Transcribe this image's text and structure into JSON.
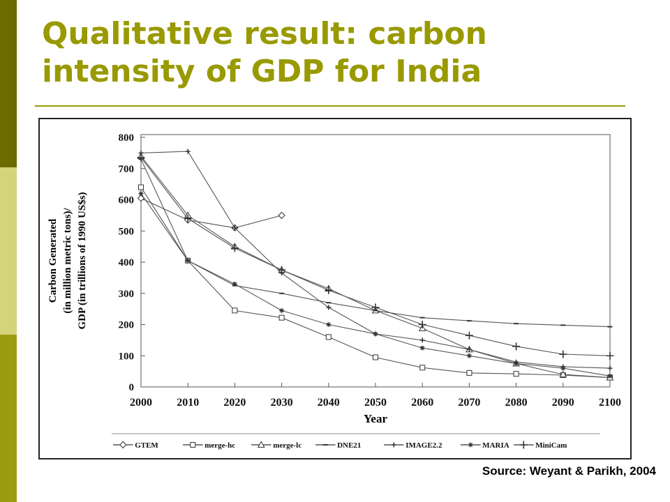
{
  "slide": {
    "title_line1": "Qualitative result: carbon",
    "title_line2": "intensity of GDP for India",
    "source": "Source: Weyant & Parikh, 2004",
    "colors": {
      "accent": "#999900",
      "bar_dark": "#6b6b00",
      "bar_light": "#d4d47a",
      "bar_mid": "#9c9c10"
    }
  },
  "chart_data": {
    "type": "line",
    "ylabel_lines": [
      "Carbon Generated",
      "(in million metric tons)/",
      "GDP (in trillions of 1990 US$s)"
    ],
    "xlabel": "Year",
    "x": [
      2000,
      2010,
      2020,
      2030,
      2040,
      2050,
      2060,
      2070,
      2080,
      2090,
      2100
    ],
    "xlim": [
      2000,
      2100
    ],
    "ylim": [
      0,
      800
    ],
    "yticks": [
      0,
      100,
      200,
      300,
      400,
      500,
      600,
      700,
      800
    ],
    "grid": false,
    "legend_position": "bottom",
    "series": [
      {
        "name": "GTEM",
        "marker": "diamond",
        "values": [
          605,
          535,
          510,
          550,
          null,
          null,
          null,
          null,
          null,
          null,
          null
        ]
      },
      {
        "name": "merge-hc",
        "marker": "square",
        "values": [
          640,
          405,
          245,
          222,
          160,
          95,
          62,
          45,
          42,
          38,
          30
        ]
      },
      {
        "name": "merge-lc",
        "marker": "triangle",
        "values": [
          740,
          550,
          450,
          375,
          315,
          245,
          188,
          120,
          75,
          40,
          30
        ]
      },
      {
        "name": "DNE21",
        "marker": "dash",
        "values": [
          730,
          405,
          325,
          300,
          270,
          245,
          222,
          212,
          203,
          198,
          193
        ]
      },
      {
        "name": "IMAGE2.2",
        "marker": "plus",
        "values": [
          750,
          755,
          510,
          365,
          255,
          170,
          150,
          120,
          80,
          65,
          60
        ]
      },
      {
        "name": "MARIA",
        "marker": "star",
        "values": [
          620,
          405,
          330,
          245,
          200,
          170,
          125,
          100,
          75,
          60,
          35
        ]
      },
      {
        "name": "MiniCam",
        "marker": "cross",
        "values": [
          735,
          540,
          445,
          375,
          310,
          255,
          200,
          165,
          130,
          105,
          100
        ]
      }
    ]
  }
}
